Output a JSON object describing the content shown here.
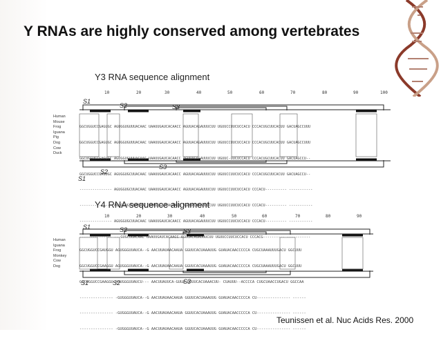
{
  "slide": {
    "title": "Y RNAs are highly conserved among vertebrates",
    "citation": "Teunissen et al. Nuc Acids Res. 2000"
  },
  "y3": {
    "heading": "Y3 RNA sequence alignment",
    "ticks": [
      "10",
      "20",
      "30",
      "40",
      "50",
      "60",
      "70",
      "80",
      "90",
      "100"
    ],
    "species": [
      "Human",
      "Mouse",
      "Frog",
      "Iguana",
      "Pig",
      "Dog",
      "Cow",
      "Duck"
    ],
    "sequences": [
      "GGCUGGUCCGAGUGC AGUGGUGUUUACAAC UAAUUGAUCACAACC AGUUACAGAUUUCUU UGUUCCUUCUCCACU CCCACUGCUUCACUU GACUAGCCUUU",
      "GGCUGGUCCGAGUGC AGUGGUGUUUACAAC UAAUUGAUCACAACC AGUUACAGAUUUCUU UGUUCCUUCUCCACU CCCACUGCUUCACUU GACUAGCCUUU",
      "GGCUGGUCCGAGUGC AGUGGUGUUUACAAC UAAUUGAUCACAACC AGUUACAGAUUUCUU UGUUC-UUCUCCACU CCCACUGCUUCACUU GACUAGCCU--",
      "GGCUGGUCCGAGUGC AGUGGUGCUUACAAC UAAUUGAUCACAACC AGUUACAGAUUUCUU UGUUCCUUCUCCACU CCCACUGCUUCACUU GACUAGCCU--",
      "--------------- AGUGGUGCUUACAAC UAAUUGAUCACAACC AGUUACAGAUUUCUU UGUUCCUUCUCCACU CCCACU---------- -----------",
      "--------------- AGUGGUGCUUACAAC UAAUUGAUCACAACC AGUUACAGAUUUCUU UGUUCCUUCUCCACU CCCACU---------- -----------",
      "--------------- AGUGGUGCUUACAAC UAAUUGAUCACAACC AGUUACAGAUUUCUU UGUUCCUUCUCCACU CCCACU---------- -----------",
      "--------------- ---GUGCUUACAAC UAAUUGAUCACAACC AGUUACAGAUUUCUU UGUUCCUUCUCCACU CCCACG---------- -----------"
    ],
    "labels": {
      "s1": "S1",
      "s2": "S2",
      "s3": "S3"
    }
  },
  "y4": {
    "heading": "Y4 RNA sequence alignment",
    "ticks": [
      "10",
      "20",
      "30",
      "40",
      "50",
      "60",
      "70",
      "80",
      "90"
    ],
    "species": [
      "Human",
      "Iguana",
      "Frog",
      "Monkey",
      "Cow",
      "Dog"
    ],
    "sequences": [
      "GGCUGGUCCGAUGGU AGUGGGUUAUCA--G AACUUAUAACAAUA GGUUCACUAAAUUG GUAUACAACCCCCA CUGCUAAAUUUGACU GGCUUU",
      "GGCUGGUCCGAAGGU AGUGGGUUAUCA--G AACUUAUAACAAUA GGUUCACUAAAUUG GUAUACAACCCCCA CUGCUAAAUUUGACU GGCUUU",
      "GGCUGGUCCGAAGGU UGUGGGUUAUCU--- AACUUAUUCA-GUUA GUUUCACUAAACUU- CUAUUU--ACCCCA CUGCUAACCUGACU GGCCAA",
      "--------------- -GUGGGUUAUCA--G AACUUAUAACAAUA GGUUCACUAAAUUG GUAUACAACCCCCA CU--------------- ------",
      "--------------- -GUGGGUUAUCA--G AACUUAUAACAAUA GGUUCACUAAAUUG GUAUACAACCCCCA CU--------------- ------",
      "--------------- -GUGGGUUAUCA--G AACUUAUAACAAUA GGUUCACUAAAUUG GUAUACAACCCCCA CU--------------- ------"
    ],
    "labels": {
      "s1": "S1",
      "s2": "S2",
      "s3": "S3"
    }
  }
}
